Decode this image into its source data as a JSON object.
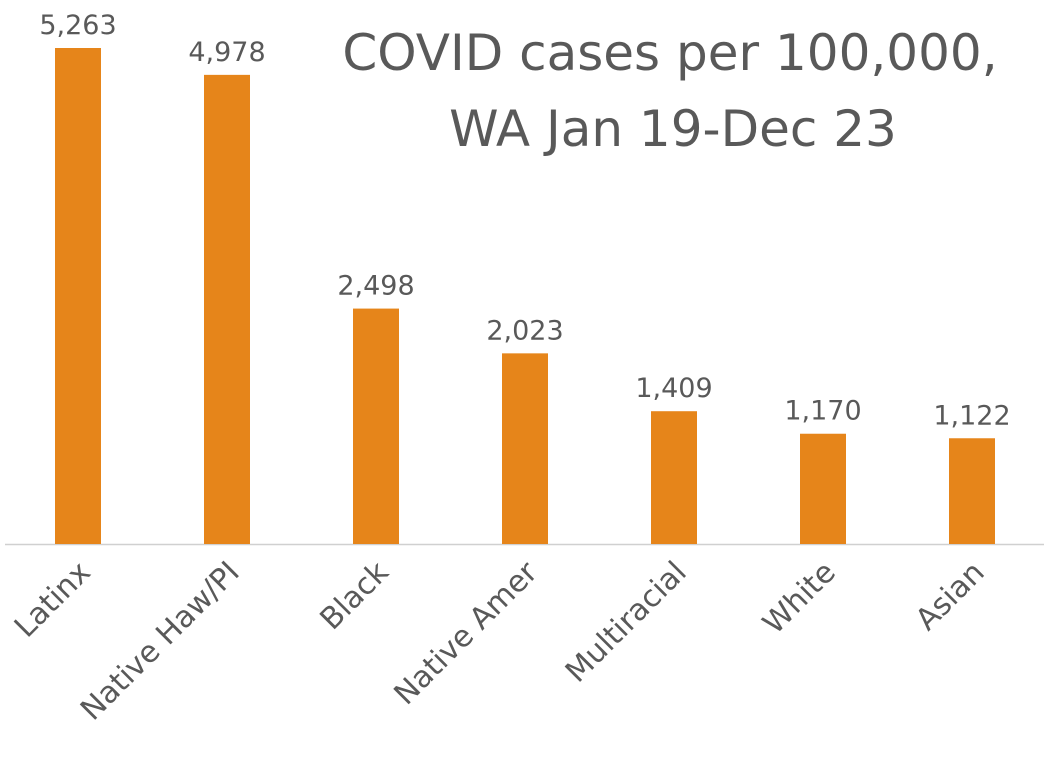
{
  "chart_data": {
    "type": "bar",
    "title": [
      "COVID cases per 100,000,",
      "WA Jan 19-Dec 23"
    ],
    "categories": [
      "Latinx",
      "Native Haw/PI",
      "Black",
      "Native Amer",
      "Multiracial",
      "White",
      "Asian"
    ],
    "values": [
      5263,
      4978,
      2498,
      2023,
      1409,
      1170,
      1122
    ],
    "value_labels": [
      "5,263",
      "4,978",
      "2,498",
      "2,023",
      "1,409",
      "1,170",
      "1,122"
    ],
    "color": "#e6851a"
  }
}
